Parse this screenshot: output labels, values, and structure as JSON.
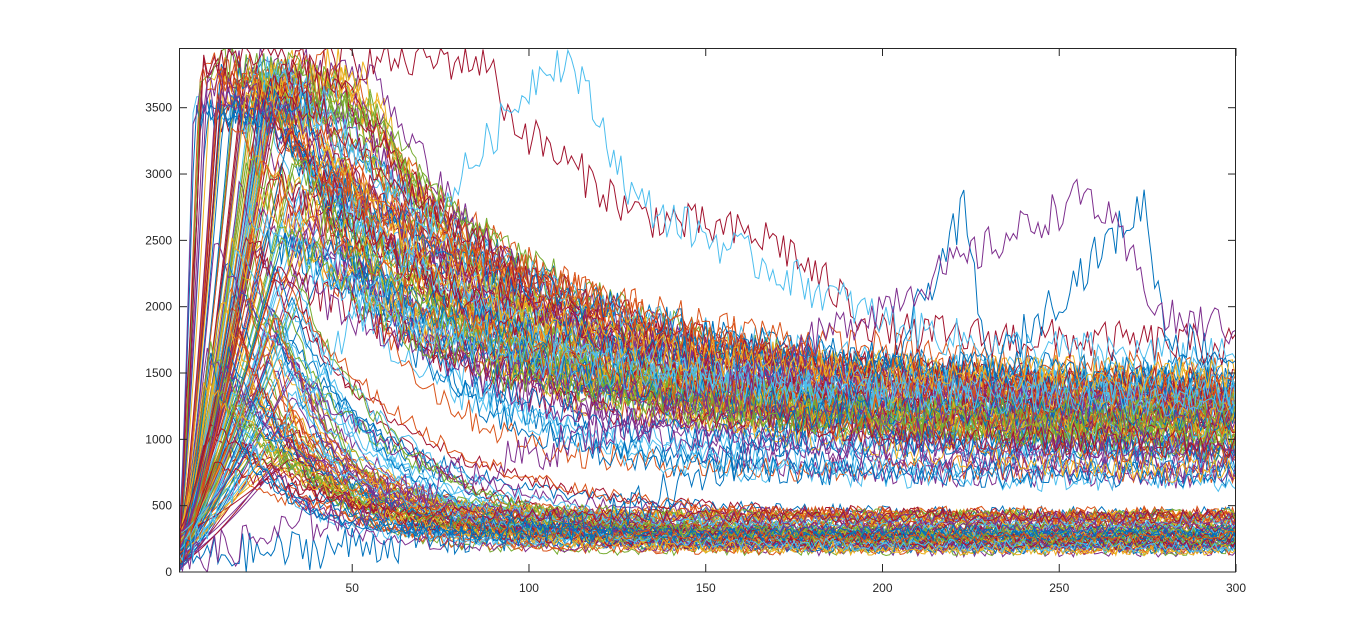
{
  "figure": {
    "background": "#ffffff"
  },
  "chart_data": {
    "type": "line",
    "title": "",
    "xlabel": "",
    "ylabel": "",
    "xlim": [
      1,
      300
    ],
    "ylim": [
      0,
      3950
    ],
    "xticks": [
      50,
      100,
      150,
      200,
      250,
      300
    ],
    "yticks": [
      0,
      500,
      1000,
      1500,
      2000,
      2500,
      3000,
      3500
    ],
    "grid": false,
    "legend": "none",
    "box": true,
    "palette": [
      "#0072BD",
      "#D95319",
      "#EDB120",
      "#7E2F8E",
      "#77AC30",
      "#4DBEEE",
      "#A2142F"
    ],
    "series_groups": [
      {
        "count": 60,
        "peak_range": [
          3500,
          3880
        ],
        "peak_at_range": [
          5,
          30
        ],
        "plateau_range": [
          1,
          30
        ],
        "decay_tau_range": [
          25,
          80
        ],
        "steady_range": [
          700,
          1400
        ],
        "noise": 130
      },
      {
        "count": 30,
        "peak_range": [
          2400,
          3400
        ],
        "peak_at_range": [
          15,
          45
        ],
        "plateau_range": [
          0,
          0
        ],
        "decay_tau_range": [
          40,
          90
        ],
        "steady_range": [
          900,
          1500
        ],
        "noise": 140
      },
      {
        "count": 80,
        "peak_range": [
          800,
          2600
        ],
        "peak_at_range": [
          8,
          35
        ],
        "plateau_range": [
          0,
          0
        ],
        "decay_tau_range": [
          12,
          40
        ],
        "steady_range": [
          150,
          450
        ],
        "noise": 70
      }
    ],
    "series": [
      {
        "values_sample": [
          [
            1,
            40
          ],
          [
            8,
            3860
          ],
          [
            88,
            3860
          ],
          [
            95,
            3400
          ],
          [
            130,
            2700
          ],
          [
            170,
            2500
          ],
          [
            200,
            1800
          ],
          [
            300,
            1700
          ]
        ],
        "color": "#A2142F"
      },
      {
        "values_sample": [
          [
            1,
            60
          ],
          [
            105,
            3850
          ],
          [
            112,
            3850
          ],
          [
            130,
            2800
          ],
          [
            160,
            2400
          ],
          [
            200,
            1900
          ],
          [
            230,
            1700
          ],
          [
            300,
            1600
          ]
        ],
        "color": "#4DBEEE"
      },
      {
        "values_sample": [
          [
            1,
            100
          ],
          [
            60,
            220
          ],
          [
            120,
            350
          ],
          [
            200,
            1400
          ],
          [
            223,
            2720
          ],
          [
            230,
            1500
          ],
          [
            274,
            2780
          ],
          [
            280,
            1800
          ],
          [
            300,
            1600
          ]
        ],
        "color": "#0072BD"
      },
      {
        "values_sample": [
          [
            1,
            60
          ],
          [
            150,
            1300
          ],
          [
            258,
            2850
          ],
          [
            265,
            2600
          ],
          [
            280,
            1900
          ],
          [
            300,
            1850
          ]
        ],
        "color": "#7E2F8E"
      }
    ]
  }
}
